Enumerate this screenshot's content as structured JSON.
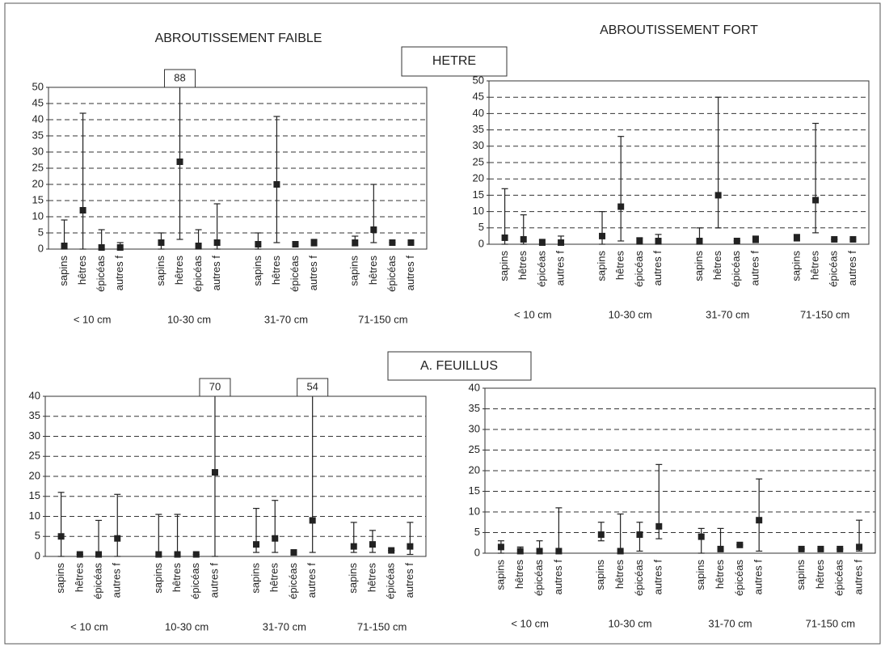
{
  "column_titles": [
    "ABROUTISSEMENT FAIBLE",
    "ABROUTISSEMENT FORT"
  ],
  "row_titles": [
    "HETRE",
    "A. FEUILLUS"
  ],
  "chart_data": [
    {
      "type": "errorbar",
      "categories": [
        "sapins",
        "hêtres",
        "épicéas",
        "autres f",
        "sapins",
        "hêtres",
        "épicéas",
        "autres f",
        "sapins",
        "hêtres",
        "épicéas",
        "autres f",
        "sapins",
        "hêtres",
        "épicéas",
        "autres f"
      ],
      "groups": [
        "< 10 cm",
        "10-30 cm",
        "31-70 cm",
        "71-150 cm"
      ],
      "values": [
        1,
        12,
        0.5,
        0.5,
        2,
        27,
        1,
        2,
        1.5,
        20,
        1.5,
        2,
        2,
        6,
        2,
        2
      ],
      "lower": [
        0,
        0,
        0,
        0,
        0,
        3,
        0,
        0,
        0,
        2,
        1,
        1,
        1,
        2,
        2,
        2
      ],
      "upper": [
        9,
        42,
        6,
        2,
        5,
        88,
        6,
        14,
        5,
        41,
        2,
        3,
        4,
        20,
        2,
        2
      ],
      "ylim": [
        0,
        50
      ],
      "yticks": [
        0,
        5,
        10,
        15,
        20,
        25,
        30,
        35,
        40,
        45,
        50
      ],
      "grid": true,
      "color": "#222222"
    },
    {
      "type": "errorbar",
      "categories": [
        "sapins",
        "hêtres",
        "épicéas",
        "autres f",
        "sapins",
        "hêtres",
        "épicéas",
        "autres f",
        "sapins",
        "hêtres",
        "épicéas",
        "autres f",
        "sapins",
        "hêtres",
        "épicéas",
        "autres f"
      ],
      "groups": [
        "< 10 cm",
        "10-30 cm",
        "31-70 cm",
        "71-150 cm"
      ],
      "values": [
        2,
        1.5,
        0.5,
        0.5,
        2.5,
        11.5,
        1,
        1,
        1,
        15,
        1,
        1.5,
        2,
        13.5,
        1.5,
        1.5
      ],
      "lower": [
        0,
        0,
        0,
        0,
        0,
        1,
        0,
        0,
        0,
        5,
        1,
        0.5,
        1,
        3.5,
        1.5,
        1.5
      ],
      "upper": [
        17,
        9,
        1.5,
        2.5,
        10,
        33,
        2,
        3,
        5,
        45,
        1,
        2.5,
        3,
        37,
        1.5,
        1.5
      ],
      "ylim": [
        0,
        50
      ],
      "yticks": [
        0,
        5,
        10,
        15,
        20,
        25,
        30,
        35,
        40,
        45,
        50
      ],
      "grid": true,
      "color": "#222222"
    },
    {
      "type": "errorbar",
      "categories": [
        "sapins",
        "hêtres",
        "épicéas",
        "autres f",
        "sapins",
        "hêtres",
        "épicéas",
        "autres f",
        "sapins",
        "hêtres",
        "épicéas",
        "autres f",
        "sapins",
        "hêtres",
        "épicéas",
        "autres f"
      ],
      "groups": [
        "< 10 cm",
        "10-30 cm",
        "31-70 cm",
        "71-150 cm"
      ],
      "values": [
        5,
        0.5,
        0.5,
        4.5,
        0.5,
        0.5,
        0.5,
        21,
        3,
        4.5,
        1,
        9,
        2.5,
        3,
        1.5,
        2.5
      ],
      "lower": [
        0,
        0.5,
        0,
        0,
        0,
        0,
        0.5,
        0,
        1,
        1,
        1,
        1,
        1,
        1,
        1.5,
        0.5
      ],
      "upper": [
        16,
        0.5,
        9,
        15.5,
        10.5,
        10.5,
        0.5,
        70,
        12,
        14,
        1,
        54,
        8.5,
        6.5,
        1.5,
        8.5
      ],
      "ylim": [
        0,
        40
      ],
      "yticks": [
        0,
        5,
        10,
        15,
        20,
        25,
        30,
        35,
        40
      ],
      "grid": true,
      "color": "#222222"
    },
    {
      "type": "errorbar",
      "categories": [
        "sapins",
        "hêtres",
        "épicéas",
        "autres f",
        "sapins",
        "hêtres",
        "épicéas",
        "autres f",
        "sapins",
        "hêtres",
        "épicéas",
        "autres f",
        "sapins",
        "hêtres",
        "épicéas",
        "autres f"
      ],
      "groups": [
        "< 10 cm",
        "10-30 cm",
        "31-70 cm",
        "71-150 cm"
      ],
      "values": [
        1.5,
        0.5,
        0.5,
        0.5,
        4.5,
        0.5,
        4.5,
        6.5,
        4,
        1,
        2,
        8,
        1,
        1,
        1,
        1.5
      ],
      "lower": [
        0,
        0,
        0,
        0,
        3,
        0,
        0.5,
        3.5,
        0,
        1,
        2,
        0.5,
        1,
        1,
        1,
        0.5
      ],
      "upper": [
        3,
        1.5,
        3,
        11,
        7.5,
        9.5,
        7.5,
        21.5,
        6,
        6,
        2,
        18,
        1,
        1,
        1,
        8
      ],
      "ylim": [
        0,
        40
      ],
      "yticks": [
        0,
        5,
        10,
        15,
        20,
        25,
        30,
        35,
        40
      ],
      "grid": true,
      "color": "#222222"
    }
  ]
}
